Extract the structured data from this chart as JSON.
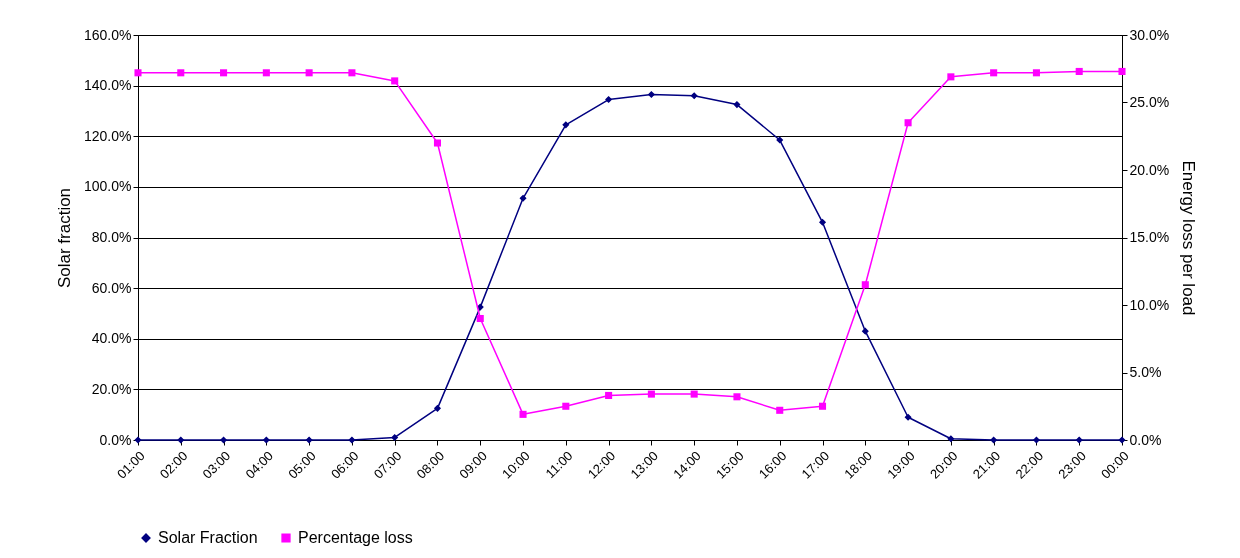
{
  "chart_data": {
    "type": "line",
    "categories": [
      "01:00",
      "02:00",
      "03:00",
      "04:00",
      "05:00",
      "06:00",
      "07:00",
      "08:00",
      "09:00",
      "10:00",
      "11:00",
      "12:00",
      "13:00",
      "14:00",
      "15:00",
      "16:00",
      "17:00",
      "18:00",
      "19:00",
      "20:00",
      "21:00",
      "22:00",
      "23:00",
      "00:00"
    ],
    "series": [
      {
        "name": "Solar Fraction",
        "color": "#000080",
        "marker": "diamond",
        "values": [
          0,
          0,
          0,
          0,
          0,
          0,
          1,
          12.5,
          52.5,
          95.5,
          124.5,
          134.5,
          136.5,
          136,
          132.5,
          118.5,
          86,
          43,
          9,
          0.5,
          0,
          0,
          0,
          0
        ]
      },
      {
        "name": "Percentage loss",
        "color": "#ff00ff",
        "marker": "square",
        "axis": "y2",
        "values": [
          27.2,
          27.2,
          27.2,
          27.2,
          27.2,
          27.2,
          26.6,
          22.0,
          9.0,
          1.9,
          2.5,
          3.3,
          3.4,
          3.4,
          3.2,
          2.2,
          2.5,
          11.5,
          23.5,
          26.9,
          27.2,
          27.2,
          27.3,
          27.3
        ]
      }
    ],
    "ylabel": "Solar fraction",
    "y2label": "Energy loss per load",
    "ylim": [
      0,
      160
    ],
    "yticks": [
      {
        "value": 0,
        "label": "0.0%"
      },
      {
        "value": 20,
        "label": "20.0%"
      },
      {
        "value": 40,
        "label": "40.0%"
      },
      {
        "value": 60,
        "label": "60.0%"
      },
      {
        "value": 80,
        "label": "80.0%"
      },
      {
        "value": 100,
        "label": "100.0%"
      },
      {
        "value": 120,
        "label": "120.0%"
      },
      {
        "value": 140,
        "label": "140.0%"
      },
      {
        "value": 160,
        "label": "160.0%"
      }
    ],
    "y2lim": [
      0,
      30
    ],
    "y2ticks": [
      {
        "value": 0,
        "label": "0.0%"
      },
      {
        "value": 5,
        "label": "5.0%"
      },
      {
        "value": 10,
        "label": "10.0%"
      },
      {
        "value": 15,
        "label": "15.0%"
      },
      {
        "value": 20,
        "label": "20.0%"
      },
      {
        "value": 25,
        "label": "25.0%"
      },
      {
        "value": 30,
        "label": "30.0%"
      }
    ],
    "grid": "y",
    "legend": "bottom",
    "line_style": "solid"
  }
}
